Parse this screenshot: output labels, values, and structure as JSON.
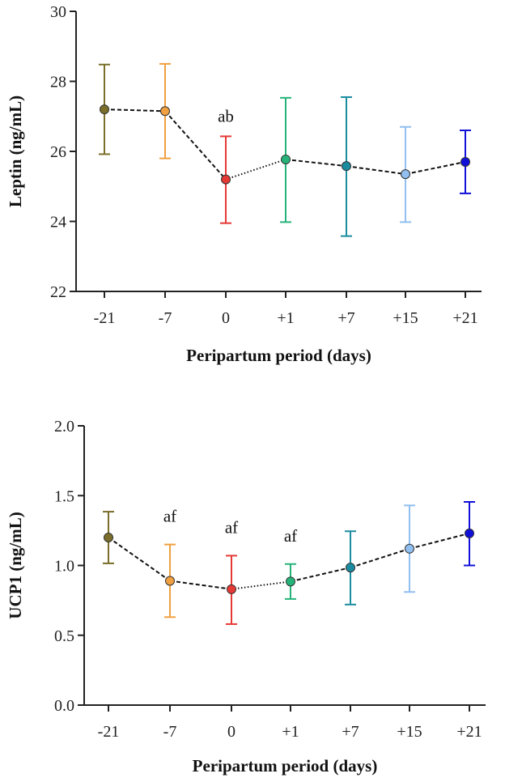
{
  "chart_data": [
    {
      "type": "line",
      "categories": [
        "-21",
        "-7",
        "0",
        "+1",
        "+7",
        "+15",
        "+21"
      ],
      "values": [
        27.2,
        27.15,
        25.2,
        25.77,
        25.58,
        25.35,
        25.7
      ],
      "error_lower": [
        25.92,
        25.8,
        23.95,
        23.98,
        23.58,
        23.98,
        24.8
      ],
      "error_upper": [
        28.48,
        28.5,
        26.43,
        27.53,
        27.55,
        26.7,
        26.6
      ],
      "colors": [
        "#7a6e2a",
        "#f0a040",
        "#e53935",
        "#26b37a",
        "#1a8ca0",
        "#90bff0",
        "#1010d8"
      ],
      "line_styles": [
        "dashed",
        "dashed",
        "dotted",
        "dashed",
        "dashed",
        "dashed"
      ],
      "annotations": [
        {
          "category": "0",
          "text": "ab"
        }
      ],
      "title": "",
      "xlabel": "Peripartum period (days)",
      "ylabel": "Leptin (ng/mL)",
      "ylim": [
        22,
        30
      ],
      "yticks": [
        22,
        24,
        26,
        28,
        30
      ],
      "ytick_labels": [
        "22",
        "24",
        "26",
        "28",
        "30"
      ]
    },
    {
      "type": "line",
      "categories": [
        "-21",
        "-7",
        "0",
        "+1",
        "+7",
        "+15",
        "+21"
      ],
      "values": [
        1.2,
        0.89,
        0.83,
        0.885,
        0.985,
        1.12,
        1.23
      ],
      "error_lower": [
        1.015,
        0.63,
        0.58,
        0.76,
        0.72,
        0.81,
        1.0
      ],
      "error_upper": [
        1.385,
        1.15,
        1.07,
        1.01,
        1.245,
        1.43,
        1.455
      ],
      "colors": [
        "#7a6e2a",
        "#f0a040",
        "#e53935",
        "#26b37a",
        "#1a8ca0",
        "#90bff0",
        "#1010d8"
      ],
      "line_styles": [
        "dashed",
        "dashed",
        "dotted",
        "dashed",
        "dashed",
        "dashed"
      ],
      "annotations": [
        {
          "category": "-7",
          "text": "af"
        },
        {
          "category": "0",
          "text": "af"
        },
        {
          "category": "+1",
          "text": "af"
        }
      ],
      "title": "",
      "xlabel": "Peripartum period (days)",
      "ylabel": "UCP1 (ng/mL)",
      "ylim": [
        0,
        2
      ],
      "yticks": [
        0,
        0.5,
        1,
        1.5,
        2
      ],
      "ytick_labels": [
        "0.0",
        "0.5",
        "1.0",
        "1.5",
        "2.0"
      ]
    }
  ]
}
